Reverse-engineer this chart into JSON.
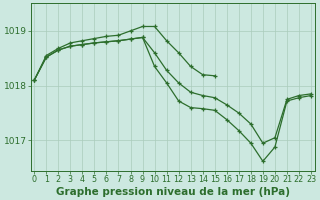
{
  "background_color": "#cce8e0",
  "grid_color": "#aaccbb",
  "line_color": "#2d6e2d",
  "xlabel": "Graphe pression niveau de la mer (hPa)",
  "xlabel_fontsize": 7.5,
  "ylabel_values": [
    1017,
    1018,
    1019
  ],
  "xlim": [
    -0.3,
    23.3
  ],
  "ylim": [
    1016.45,
    1019.5
  ],
  "series": [
    {
      "x": [
        0,
        1,
        2,
        3,
        4,
        5,
        6,
        7,
        8,
        9,
        10,
        11,
        12,
        13,
        14,
        15
      ],
      "y": [
        1018.1,
        1018.55,
        1018.68,
        1018.78,
        1018.82,
        1018.86,
        1018.9,
        1018.92,
        1019.0,
        1019.08,
        1019.08,
        1018.82,
        1018.6,
        1018.35,
        1018.2,
        1018.18
      ]
    },
    {
      "x": [
        0,
        1,
        2,
        3,
        4,
        5,
        6,
        7,
        8,
        9,
        10,
        11,
        12,
        13,
        14,
        15,
        16,
        17,
        18,
        19,
        20,
        21,
        22,
        23
      ],
      "y": [
        1018.1,
        1018.52,
        1018.65,
        1018.72,
        1018.75,
        1018.78,
        1018.8,
        1018.82,
        1018.85,
        1018.88,
        1018.6,
        1018.28,
        1018.05,
        1017.88,
        1017.82,
        1017.78,
        1017.65,
        1017.5,
        1017.3,
        1016.95,
        1017.05,
        1017.75,
        1017.82,
        1017.85
      ]
    },
    {
      "x": [
        0,
        1,
        2,
        3,
        4,
        5,
        6,
        7,
        8,
        9,
        10,
        11,
        12,
        13,
        14,
        15,
        16,
        17,
        18,
        19,
        20,
        21,
        22,
        23
      ],
      "y": [
        1018.1,
        1018.52,
        1018.65,
        1018.72,
        1018.75,
        1018.78,
        1018.8,
        1018.82,
        1018.85,
        1018.88,
        1018.35,
        1018.05,
        1017.72,
        1017.6,
        1017.58,
        1017.55,
        1017.38,
        1017.18,
        1016.95,
        1016.62,
        1016.88,
        1017.72,
        1017.78,
        1017.82
      ]
    }
  ],
  "xtick_labels": [
    "0",
    "1",
    "2",
    "3",
    "4",
    "5",
    "6",
    "7",
    "8",
    "9",
    "10",
    "11",
    "12",
    "13",
    "14",
    "15",
    "16",
    "17",
    "18",
    "19",
    "20",
    "21",
    "22",
    "23"
  ],
  "tick_fontsize": 5.8,
  "ytick_fontsize": 6.5
}
